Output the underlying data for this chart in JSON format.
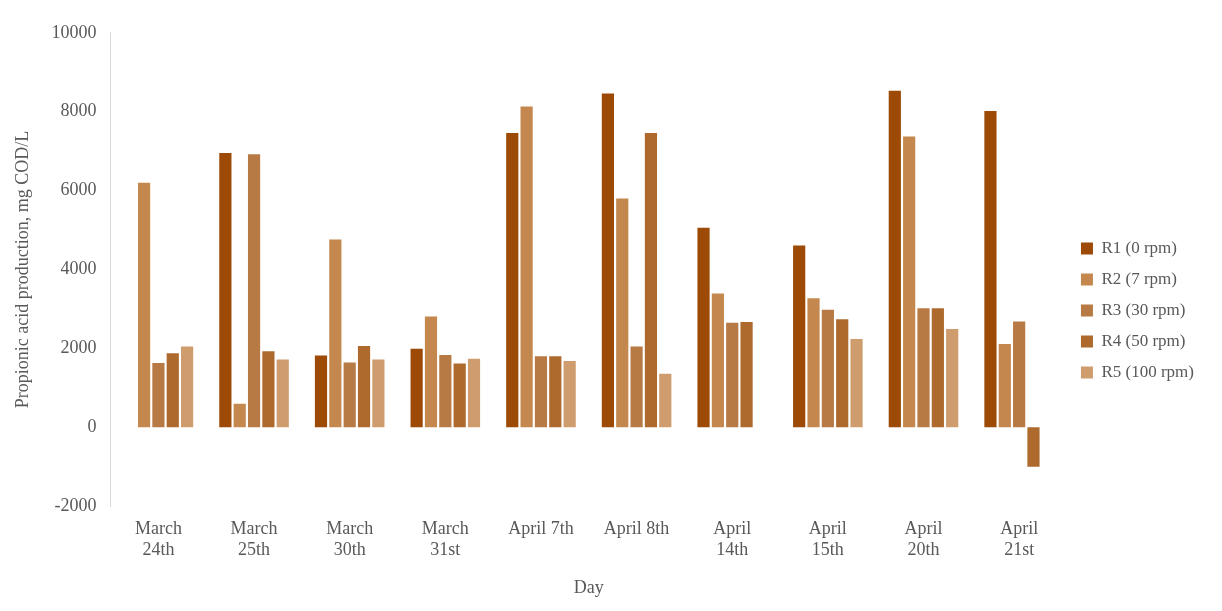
{
  "chart_data": {
    "type": "bar",
    "xlabel": "Day",
    "ylabel": "Propionic acid production, mg COD/L",
    "categories": [
      "March 24th",
      "March 25th",
      "March 30th",
      "March 31st",
      "April 7th",
      "April 8th",
      "April 14th",
      "April 15th",
      "April 20th",
      "April 21st"
    ],
    "series": [
      {
        "name": "R1 (0 rpm)",
        "color": "#9c4a05",
        "values": [
          null,
          6950,
          1820,
          1990,
          7460,
          8460,
          5060,
          4610,
          8530,
          8020
        ]
      },
      {
        "name": "R2 (7 rpm)",
        "color": "#c4884f",
        "values": [
          6200,
          600,
          4760,
          2810,
          8130,
          5800,
          3390,
          3270,
          7370,
          2110
        ]
      },
      {
        "name": "R3 (30 rpm)",
        "color": "#b87a44",
        "values": [
          1630,
          6920,
          1640,
          1830,
          1800,
          2050,
          2650,
          2980,
          3020,
          2680
        ]
      },
      {
        "name": "R4 (50 rpm)",
        "color": "#ad6a2c",
        "values": [
          1880,
          1930,
          2060,
          1620,
          1800,
          7460,
          2670,
          2740,
          3020,
          -1000
        ]
      },
      {
        "name": "R5 (100 rpm)",
        "color": "#cf9c6e",
        "values": [
          2050,
          1720,
          1720,
          1740,
          1680,
          1360,
          null,
          2240,
          2490,
          null
        ]
      }
    ],
    "ylim": [
      -2000,
      10000
    ],
    "yticks": [
      -2000,
      0,
      2000,
      4000,
      6000,
      8000,
      10000
    ],
    "grid": false,
    "legend": "right"
  }
}
